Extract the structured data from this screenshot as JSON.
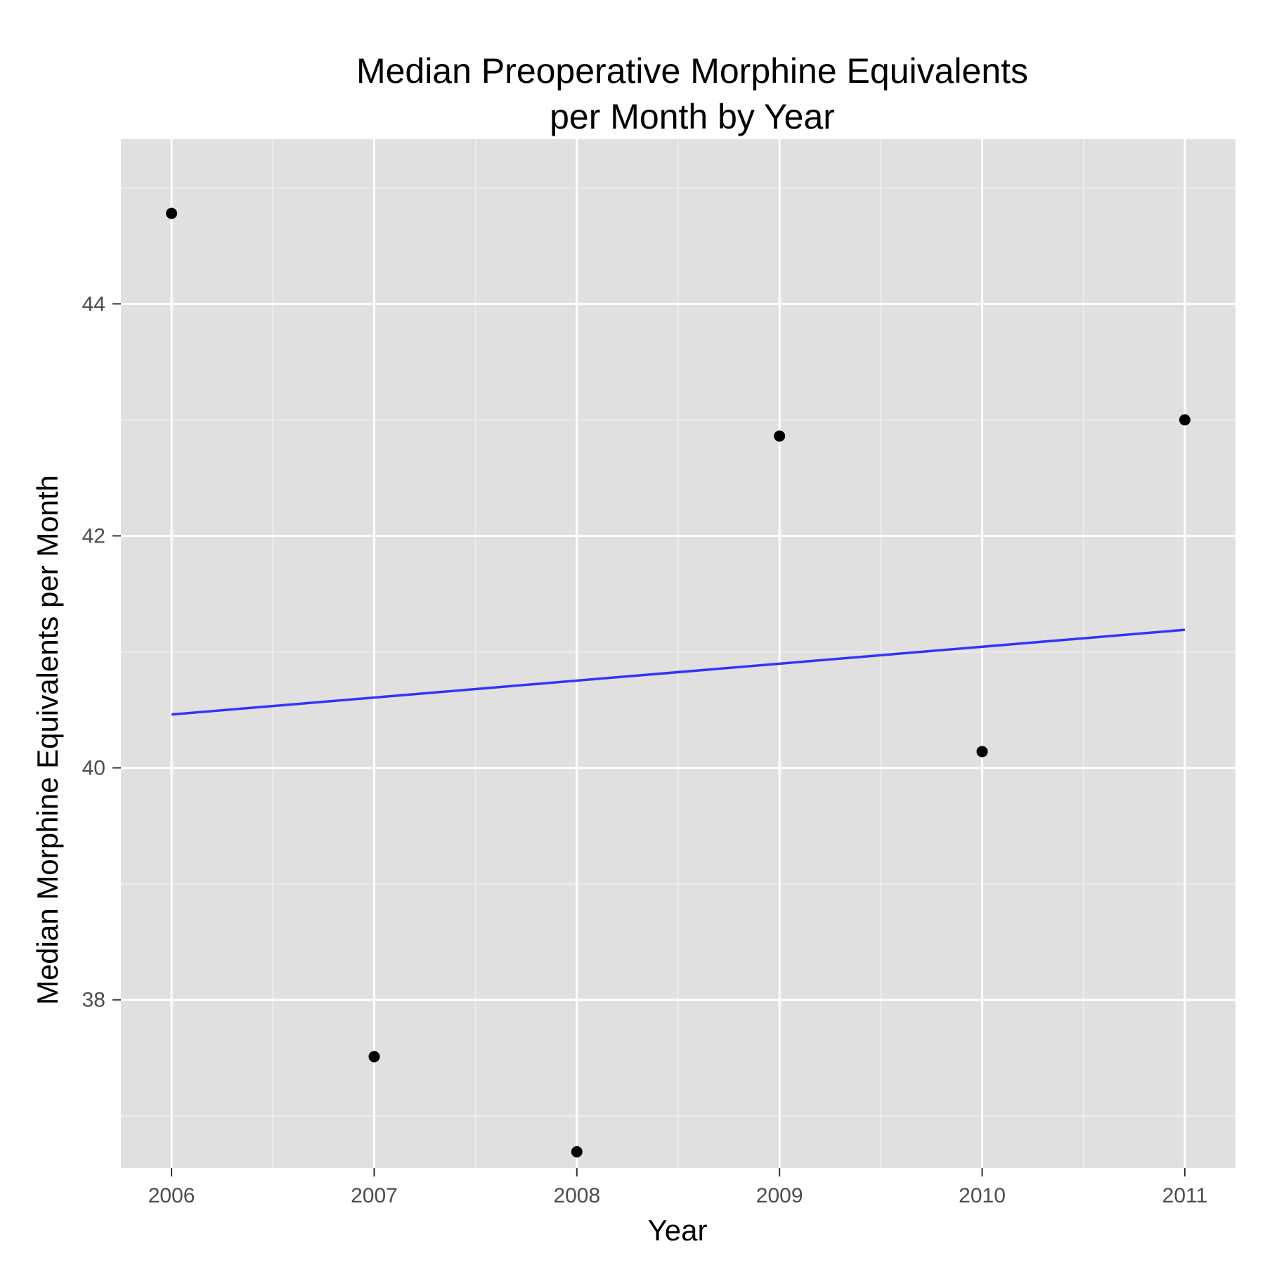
{
  "chart_data": {
    "type": "scatter",
    "title_lines": [
      "Median Preoperative Morphine Equivalents",
      "per Month by Year"
    ],
    "xlabel": "Year",
    "ylabel": "Median Morphine Equivalents per Month",
    "x_ticks": [
      2006,
      2007,
      2008,
      2009,
      2010,
      2011
    ],
    "x_tick_labels": [
      "2006",
      "2007",
      "2008",
      "2009",
      "2010",
      "2011"
    ],
    "y_ticks": [
      38,
      40,
      42,
      44
    ],
    "y_tick_labels": [
      "38",
      "40",
      "42",
      "44"
    ],
    "xlim": [
      2005.75,
      2011.25
    ],
    "ylim": [
      36.55,
      45.42
    ],
    "grid": true,
    "points": [
      {
        "x": 2006,
        "y": 44.78
      },
      {
        "x": 2007,
        "y": 37.51
      },
      {
        "x": 2008,
        "y": 36.69
      },
      {
        "x": 2009,
        "y": 42.86
      },
      {
        "x": 2010,
        "y": 40.14
      },
      {
        "x": 2011,
        "y": 43.0
      }
    ],
    "trend_line": {
      "x": [
        2006,
        2011
      ],
      "y": [
        40.46,
        41.19
      ]
    },
    "colors": {
      "panel": "#e0e0e0",
      "grid_major": "#ffffff",
      "grid_minor": "#f0f0f0",
      "point": "#000000",
      "trend": "#3333ff",
      "tick_text": "#4d4d4d",
      "tick_mark": "#333333"
    }
  }
}
